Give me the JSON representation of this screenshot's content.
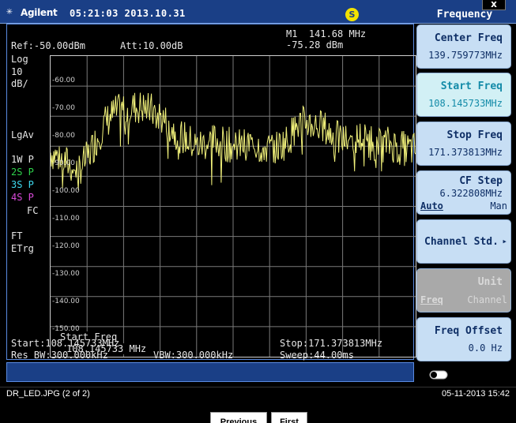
{
  "header": {
    "brand": "Agilent",
    "clock": "05:21:03  2013.10.31",
    "status_badge": "S",
    "menu_title": "Frequency",
    "close_label": "x",
    "logo_glyph": "✳"
  },
  "display": {
    "ref": "Ref:-50.00dBm",
    "att": "Att:10.00dB",
    "marker_line1": "M1  141.68 MHz",
    "marker_line2": "-75.28 dBm",
    "scale_log": "Log",
    "scale_div": "10",
    "scale_unit": "dB/",
    "avg": "LgAv",
    "trace1": "1W P",
    "trace2": "2S P",
    "trace3": "3S P",
    "trace4": "4S P",
    "fc": "FC",
    "ft": "FT",
    "etrg": "ETrg",
    "annotation_title": "Start Freq",
    "annotation_value": "108.145733 MHz",
    "start": "Start:108.145733MHz",
    "stop": "Stop:171.373813MHz",
    "rbw": "Res BW:300.000kHz",
    "vbw": "VBW:300.000kHz",
    "sweep": "Sweep:44.00ms"
  },
  "softkeys": {
    "center_label": "Center Freq",
    "center_value": "139.759773MHz",
    "start_label": "Start Freq",
    "start_value": "108.145733MHz",
    "stop_label": "Stop Freq",
    "stop_value": "171.373813MHz",
    "cfstep_label": "CF Step",
    "cfstep_value": "6.322808MHz",
    "cfstep_auto": "Auto",
    "cfstep_man": "Man",
    "channel_std_label": "Channel Std.",
    "unit_label": "Unit",
    "unit_freq": "Freq",
    "unit_channel": "Channel",
    "offset_label": "Freq Offset",
    "offset_value": "0.0 Hz"
  },
  "caption": {
    "filename": "DR_LED.JPG (2 of 2)",
    "date": "05-11-2013 15:42",
    "previous_label": "Previous",
    "first_label": "First"
  },
  "chart_data": {
    "type": "line",
    "title": "",
    "xlabel": "",
    "ylabel": "",
    "xlim": [
      108.145733,
      171.373813
    ],
    "ylim": [
      -150,
      -50
    ],
    "y_unit": "dBm",
    "grid": true,
    "ytick_labels": [
      "-60.00",
      "-70.00",
      "-80.00",
      "-90.00",
      "-100.00",
      "-110.00",
      "-120.00",
      "-130.00",
      "-140.00",
      "-150.00"
    ],
    "series": [
      {
        "color": "#f0f07a",
        "x": [
          108.15,
          109.73,
          111.31,
          112.89,
          114.47,
          116.05,
          117.63,
          119.21,
          120.79,
          122.37,
          123.95,
          125.53,
          127.12,
          128.7,
          130.28,
          131.86,
          133.44,
          135.02,
          136.6,
          138.18,
          139.76,
          141.34,
          142.92,
          144.5,
          146.08,
          147.66,
          149.24,
          150.83,
          152.41,
          153.99,
          155.57,
          157.15,
          158.73,
          160.31,
          161.89,
          163.47,
          165.05,
          166.63,
          168.21,
          169.79,
          171.37
        ],
        "y": [
          -82,
          -84,
          -86,
          -88,
          -84,
          -78,
          -72,
          -69,
          -68,
          -67,
          -67,
          -68,
          -70,
          -73,
          -76,
          -78,
          -80,
          -79,
          -78,
          -79,
          -80,
          -80,
          -79,
          -80,
          -81,
          -80,
          -78,
          -73,
          -72,
          -73,
          -74,
          -77,
          -78,
          -78,
          -77,
          -78,
          -80,
          -79,
          -80,
          -81,
          -81
        ]
      }
    ]
  }
}
